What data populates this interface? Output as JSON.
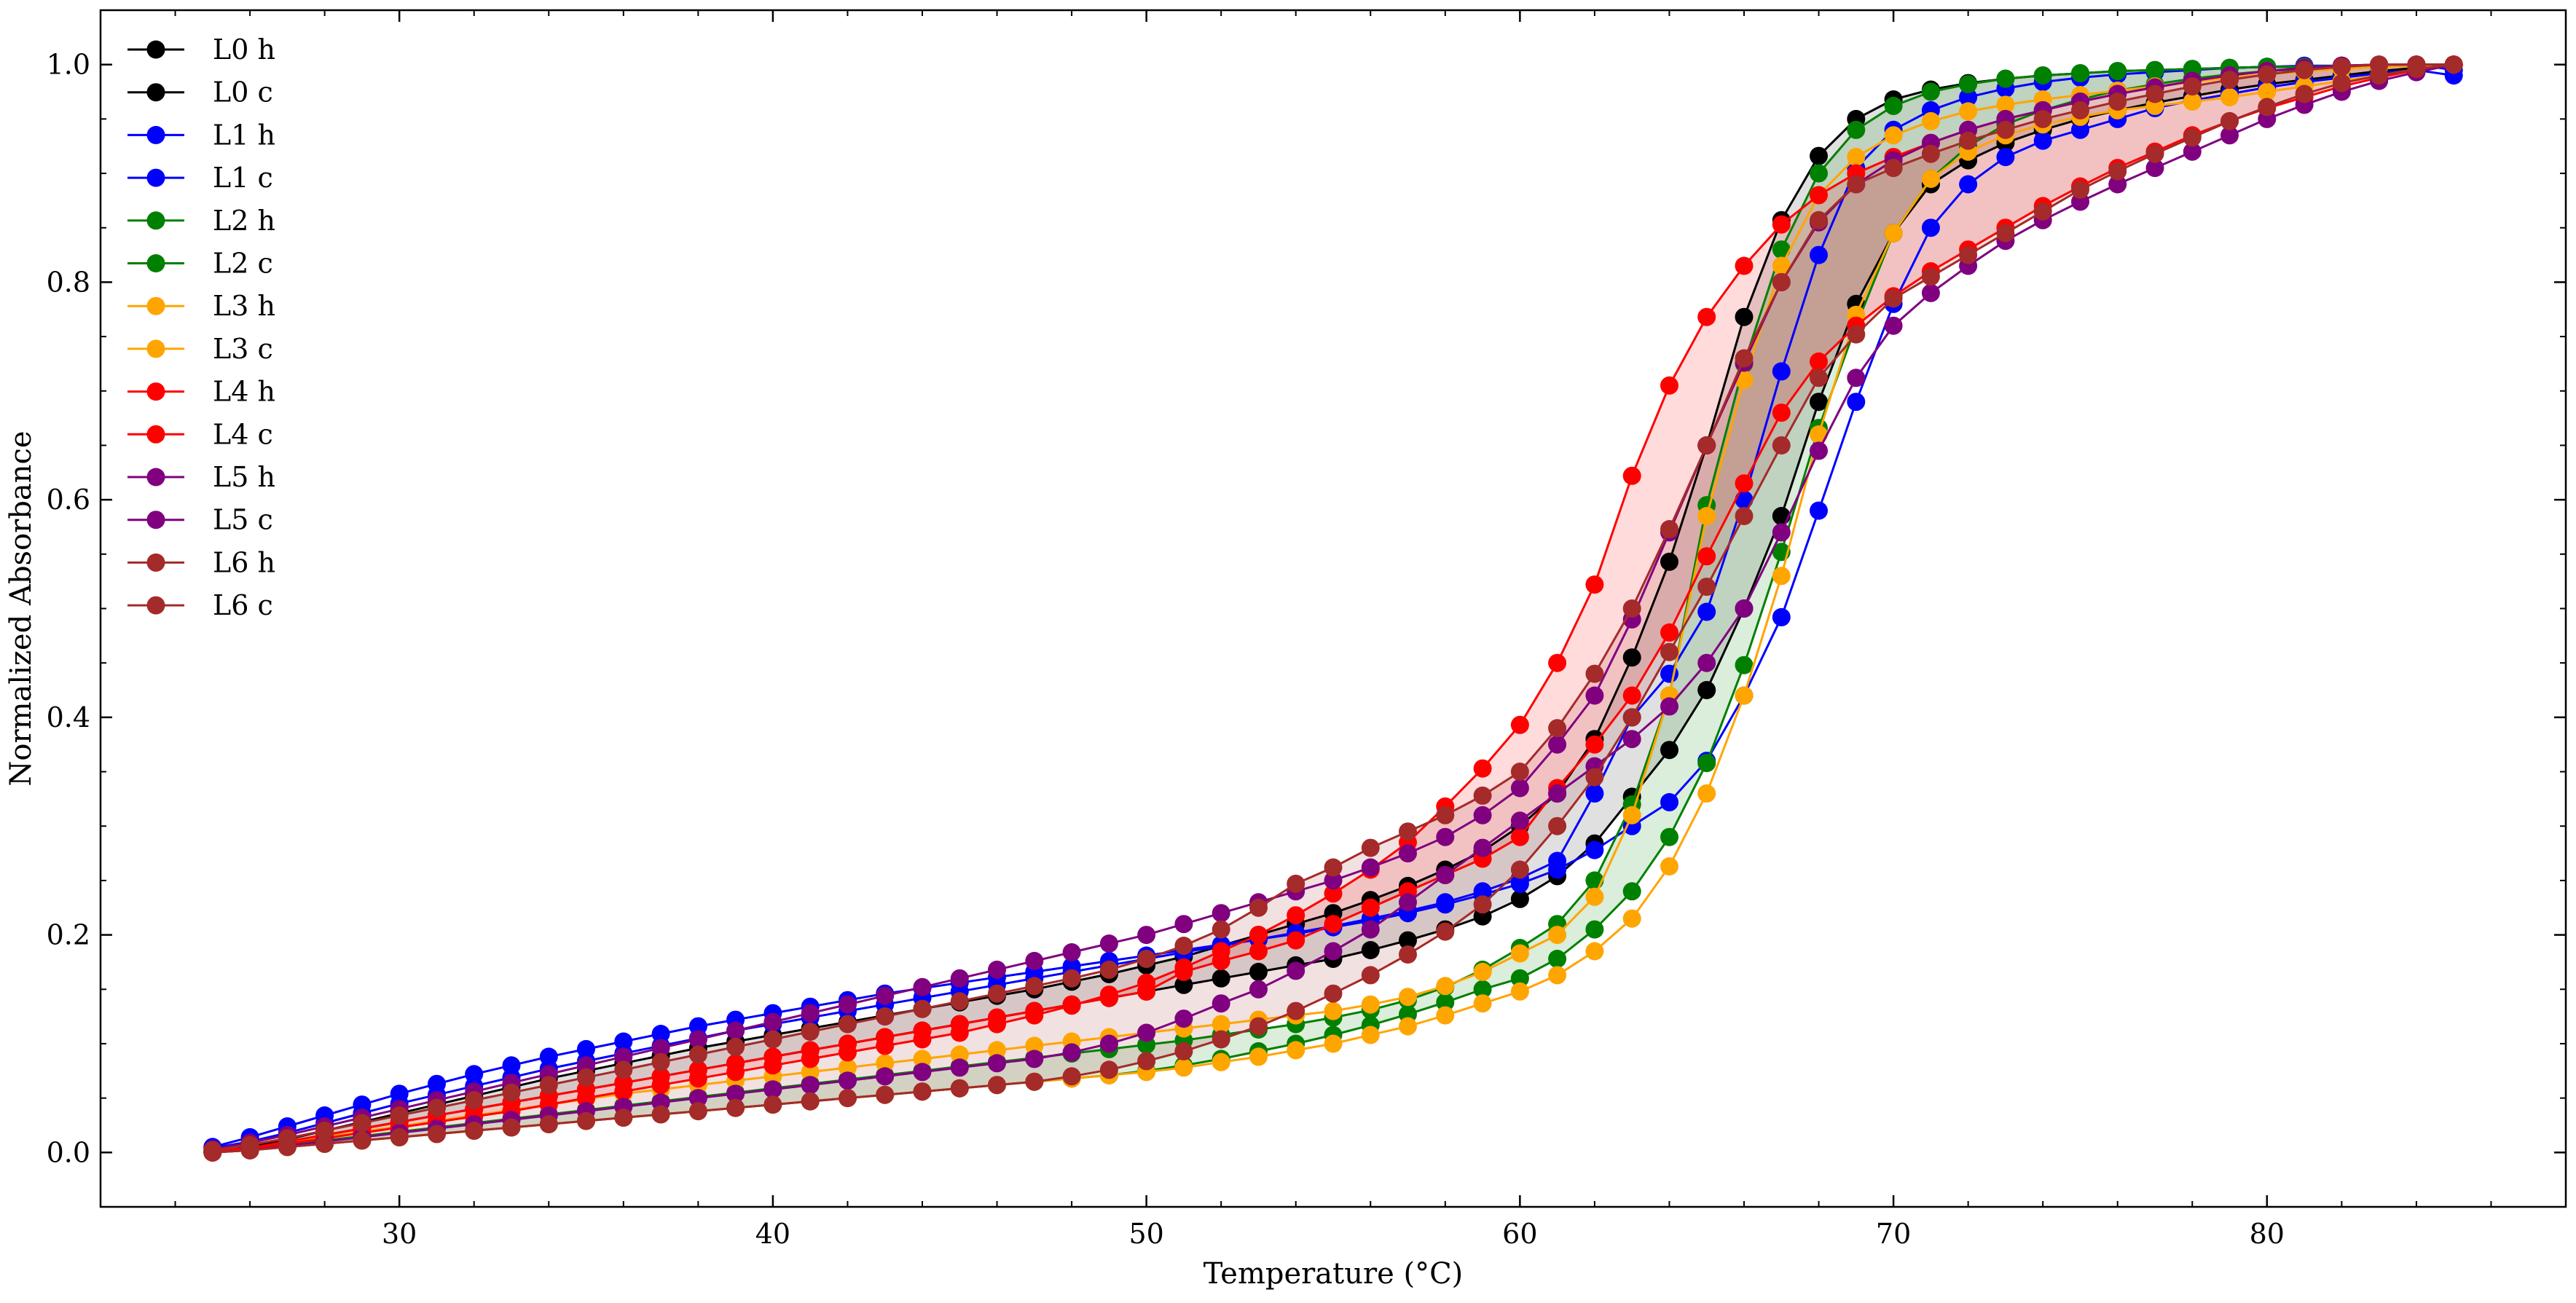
{
  "chart_data": {
    "type": "line",
    "title": "",
    "xlabel": "Temperature (°C)",
    "ylabel": "Normalized Absorbance",
    "xlim": [
      22,
      88
    ],
    "ylim": [
      -0.05,
      1.05
    ],
    "x_ticks": [
      30,
      40,
      50,
      60,
      70,
      80
    ],
    "y_ticks": [
      0.0,
      0.2,
      0.4,
      0.6,
      0.8,
      1.0
    ],
    "x_tick_labels": [
      "30",
      "40",
      "50",
      "60",
      "70",
      "80"
    ],
    "y_tick_labels": [
      "0.0",
      "0.2",
      "0.4",
      "0.6",
      "0.8",
      "1.0"
    ],
    "legend_position": "top-left",
    "grid": false,
    "x": [
      25,
      26,
      27,
      28,
      29,
      30,
      31,
      32,
      33,
      34,
      35,
      36,
      37,
      38,
      39,
      40,
      41,
      42,
      43,
      44,
      45,
      46,
      47,
      48,
      49,
      50,
      51,
      52,
      53,
      54,
      55,
      56,
      57,
      58,
      59,
      60,
      61,
      62,
      63,
      64,
      65,
      66,
      67,
      68,
      69,
      70,
      71,
      72,
      73,
      74,
      75,
      76,
      77,
      78,
      79,
      80,
      81,
      82,
      83,
      84,
      85
    ],
    "series": [
      {
        "name": "L0 h",
        "color": "#000000",
        "values": [
          0,
          0.005,
          0.012,
          0.02,
          0.028,
          0.036,
          0.044,
          0.052,
          0.06,
          0.068,
          0.075,
          0.082,
          0.089,
          0.096,
          0.102,
          0.108,
          0.114,
          0.12,
          0.126,
          0.132,
          0.138,
          0.144,
          0.15,
          0.157,
          0.164,
          0.172,
          0.18,
          0.19,
          0.2,
          0.21,
          0.22,
          0.232,
          0.245,
          0.26,
          0.277,
          0.3,
          0.33,
          0.38,
          0.455,
          0.543,
          0.65,
          0.768,
          0.857,
          0.916,
          0.95,
          0.968,
          0.977,
          0.983,
          0.987,
          0.99,
          0.992,
          0.994,
          0.995,
          0.996,
          0.997,
          0.998,
          0.998,
          0.999,
          0.999,
          1.0,
          1.0
        ]
      },
      {
        "name": "L0 c",
        "color": "#000000",
        "values": [
          0,
          0.004,
          0.01,
          0.016,
          0.022,
          0.028,
          0.034,
          0.04,
          0.046,
          0.052,
          0.058,
          0.064,
          0.07,
          0.076,
          0.082,
          0.088,
          0.094,
          0.1,
          0.106,
          0.112,
          0.118,
          0.124,
          0.13,
          0.136,
          0.142,
          0.148,
          0.154,
          0.16,
          0.166,
          0.172,
          0.178,
          0.186,
          0.195,
          0.205,
          0.217,
          0.233,
          0.254,
          0.284,
          0.327,
          0.37,
          0.425,
          0.5,
          0.585,
          0.69,
          0.78,
          0.845,
          0.89,
          0.912,
          0.928,
          0.94,
          0.95,
          0.958,
          0.965,
          0.971,
          0.977,
          0.982,
          0.986,
          0.99,
          0.994,
          0.997,
          1.0
        ]
      },
      {
        "name": "L1 h",
        "color": "#0000ff",
        "values": [
          0.005,
          0.014,
          0.024,
          0.034,
          0.044,
          0.054,
          0.063,
          0.072,
          0.08,
          0.088,
          0.095,
          0.102,
          0.109,
          0.116,
          0.122,
          0.128,
          0.134,
          0.14,
          0.146,
          0.151,
          0.156,
          0.161,
          0.166,
          0.171,
          0.176,
          0.181,
          0.186,
          0.191,
          0.196,
          0.201,
          0.207,
          0.213,
          0.22,
          0.228,
          0.237,
          0.247,
          0.26,
          0.278,
          0.3,
          0.322,
          0.36,
          0.42,
          0.492,
          0.59,
          0.69,
          0.78,
          0.85,
          0.89,
          0.915,
          0.93,
          0.94,
          0.95,
          0.96,
          0.967,
          0.973,
          0.979,
          0.984,
          0.988,
          0.992,
          0.995,
          0.99
        ]
      },
      {
        "name": "L1 c",
        "color": "#0000ff",
        "values": [
          0.004,
          0.01,
          0.018,
          0.027,
          0.036,
          0.045,
          0.053,
          0.061,
          0.069,
          0.077,
          0.084,
          0.091,
          0.098,
          0.105,
          0.112,
          0.118,
          0.124,
          0.13,
          0.136,
          0.142,
          0.148,
          0.154,
          0.16,
          0.166,
          0.172,
          0.178,
          0.184,
          0.19,
          0.196,
          0.202,
          0.208,
          0.215,
          0.222,
          0.23,
          0.24,
          0.252,
          0.268,
          0.33,
          0.4,
          0.44,
          0.497,
          0.6,
          0.718,
          0.825,
          0.905,
          0.94,
          0.958,
          0.97,
          0.978,
          0.984,
          0.988,
          0.991,
          0.993,
          0.995,
          0.997,
          0.998,
          0.999,
          0.999,
          1.0,
          1.0,
          0.995
        ]
      },
      {
        "name": "L2 h",
        "color": "#008000",
        "values": [
          0,
          0.003,
          0.007,
          0.011,
          0.015,
          0.019,
          0.023,
          0.027,
          0.031,
          0.035,
          0.039,
          0.043,
          0.047,
          0.051,
          0.055,
          0.059,
          0.063,
          0.067,
          0.071,
          0.075,
          0.079,
          0.083,
          0.087,
          0.091,
          0.095,
          0.099,
          0.103,
          0.108,
          0.113,
          0.118,
          0.124,
          0.131,
          0.14,
          0.152,
          0.168,
          0.188,
          0.21,
          0.25,
          0.32,
          0.42,
          0.595,
          0.725,
          0.83,
          0.9,
          0.94,
          0.962,
          0.975,
          0.982,
          0.987,
          0.99,
          0.992,
          0.994,
          0.995,
          0.996,
          0.997,
          0.998,
          0.998,
          0.999,
          0.999,
          1.0,
          1.0
        ]
      },
      {
        "name": "L2 c",
        "color": "#008000",
        "values": [
          0,
          0.002,
          0.005,
          0.008,
          0.011,
          0.014,
          0.017,
          0.02,
          0.023,
          0.026,
          0.029,
          0.032,
          0.035,
          0.038,
          0.041,
          0.044,
          0.047,
          0.05,
          0.053,
          0.056,
          0.059,
          0.062,
          0.065,
          0.068,
          0.071,
          0.075,
          0.08,
          0.086,
          0.093,
          0.1,
          0.108,
          0.117,
          0.127,
          0.138,
          0.15,
          0.16,
          0.178,
          0.205,
          0.24,
          0.29,
          0.358,
          0.448,
          0.552,
          0.666,
          0.76,
          0.845,
          0.895,
          0.925,
          0.945,
          0.958,
          0.968,
          0.976,
          0.982,
          0.987,
          0.991,
          0.994,
          0.996,
          0.998,
          0.999,
          1.0,
          1.0
        ]
      },
      {
        "name": "L3 h",
        "color": "#ffa500",
        "values": [
          0,
          0.004,
          0.009,
          0.014,
          0.019,
          0.024,
          0.029,
          0.034,
          0.039,
          0.044,
          0.049,
          0.054,
          0.058,
          0.062,
          0.066,
          0.07,
          0.074,
          0.078,
          0.082,
          0.086,
          0.09,
          0.094,
          0.098,
          0.102,
          0.106,
          0.11,
          0.114,
          0.118,
          0.122,
          0.126,
          0.13,
          0.136,
          0.143,
          0.153,
          0.166,
          0.183,
          0.2,
          0.235,
          0.31,
          0.42,
          0.585,
          0.71,
          0.815,
          0.88,
          0.915,
          0.935,
          0.948,
          0.957,
          0.963,
          0.968,
          0.972,
          0.976,
          0.98,
          0.984,
          0.988,
          0.991,
          0.994,
          0.996,
          0.998,
          0.999,
          1.0
        ]
      },
      {
        "name": "L3 c",
        "color": "#ffa500",
        "values": [
          0,
          0.002,
          0.005,
          0.008,
          0.011,
          0.014,
          0.017,
          0.02,
          0.023,
          0.026,
          0.029,
          0.032,
          0.035,
          0.038,
          0.041,
          0.044,
          0.047,
          0.05,
          0.053,
          0.056,
          0.059,
          0.062,
          0.065,
          0.068,
          0.071,
          0.074,
          0.078,
          0.083,
          0.088,
          0.094,
          0.1,
          0.108,
          0.116,
          0.126,
          0.137,
          0.148,
          0.163,
          0.185,
          0.215,
          0.263,
          0.33,
          0.42,
          0.53,
          0.66,
          0.77,
          0.845,
          0.895,
          0.92,
          0.935,
          0.945,
          0.952,
          0.958,
          0.962,
          0.966,
          0.97,
          0.975,
          0.98,
          0.985,
          0.99,
          0.995,
          1.0
        ]
      },
      {
        "name": "L4 h",
        "color": "#ff0000",
        "values": [
          0,
          0.003,
          0.008,
          0.013,
          0.018,
          0.023,
          0.028,
          0.033,
          0.038,
          0.044,
          0.05,
          0.056,
          0.062,
          0.068,
          0.074,
          0.08,
          0.086,
          0.092,
          0.098,
          0.104,
          0.11,
          0.118,
          0.126,
          0.135,
          0.145,
          0.156,
          0.17,
          0.185,
          0.2,
          0.218,
          0.238,
          0.26,
          0.285,
          0.318,
          0.353,
          0.393,
          0.45,
          0.522,
          0.622,
          0.705,
          0.768,
          0.815,
          0.853,
          0.88,
          0.9,
          0.915,
          0.928,
          0.94,
          0.95,
          0.958,
          0.966,
          0.973,
          0.979,
          0.985,
          0.99,
          0.994,
          0.997,
          0.999,
          1.0,
          1.0,
          1.0
        ]
      },
      {
        "name": "L4 c",
        "color": "#ff0000",
        "values": [
          0.001,
          0.004,
          0.01,
          0.016,
          0.022,
          0.028,
          0.034,
          0.04,
          0.046,
          0.052,
          0.058,
          0.064,
          0.07,
          0.076,
          0.082,
          0.088,
          0.094,
          0.1,
          0.106,
          0.112,
          0.118,
          0.124,
          0.13,
          0.136,
          0.142,
          0.148,
          0.166,
          0.176,
          0.185,
          0.195,
          0.21,
          0.225,
          0.24,
          0.255,
          0.27,
          0.29,
          0.335,
          0.375,
          0.42,
          0.478,
          0.548,
          0.615,
          0.68,
          0.727,
          0.76,
          0.787,
          0.81,
          0.83,
          0.85,
          0.87,
          0.888,
          0.905,
          0.92,
          0.935,
          0.948,
          0.96,
          0.97,
          0.98,
          0.988,
          0.995,
          1.0
        ]
      },
      {
        "name": "L5 h",
        "color": "#800080",
        "values": [
          0.003,
          0.009,
          0.016,
          0.024,
          0.032,
          0.04,
          0.048,
          0.056,
          0.064,
          0.072,
          0.08,
          0.088,
          0.096,
          0.104,
          0.112,
          0.12,
          0.128,
          0.136,
          0.144,
          0.152,
          0.16,
          0.168,
          0.176,
          0.184,
          0.192,
          0.2,
          0.21,
          0.22,
          0.23,
          0.24,
          0.25,
          0.262,
          0.275,
          0.29,
          0.31,
          0.335,
          0.375,
          0.42,
          0.49,
          0.57,
          0.65,
          0.726,
          0.8,
          0.855,
          0.89,
          0.912,
          0.928,
          0.94,
          0.95,
          0.958,
          0.966,
          0.973,
          0.979,
          0.985,
          0.99,
          0.994,
          0.997,
          0.999,
          1.0,
          1.0,
          1.0
        ]
      },
      {
        "name": "L5 c",
        "color": "#800080",
        "values": [
          0,
          0.002,
          0.006,
          0.01,
          0.014,
          0.018,
          0.022,
          0.026,
          0.03,
          0.034,
          0.038,
          0.042,
          0.046,
          0.05,
          0.054,
          0.058,
          0.062,
          0.066,
          0.07,
          0.074,
          0.078,
          0.082,
          0.086,
          0.092,
          0.1,
          0.11,
          0.123,
          0.137,
          0.15,
          0.167,
          0.185,
          0.205,
          0.23,
          0.255,
          0.28,
          0.305,
          0.33,
          0.355,
          0.38,
          0.41,
          0.45,
          0.5,
          0.57,
          0.645,
          0.712,
          0.76,
          0.79,
          0.815,
          0.838,
          0.857,
          0.874,
          0.89,
          0.905,
          0.92,
          0.935,
          0.95,
          0.963,
          0.975,
          0.985,
          0.993,
          1.0
        ]
      },
      {
        "name": "L6 h",
        "color": "#a52a2a",
        "values": [
          0.002,
          0.007,
          0.013,
          0.02,
          0.027,
          0.034,
          0.041,
          0.048,
          0.055,
          0.062,
          0.069,
          0.076,
          0.083,
          0.09,
          0.097,
          0.104,
          0.111,
          0.118,
          0.125,
          0.132,
          0.139,
          0.146,
          0.153,
          0.16,
          0.168,
          0.178,
          0.19,
          0.205,
          0.225,
          0.247,
          0.262,
          0.28,
          0.295,
          0.31,
          0.328,
          0.35,
          0.39,
          0.44,
          0.5,
          0.573,
          0.65,
          0.73,
          0.8,
          0.857,
          0.89,
          0.905,
          0.918,
          0.93,
          0.94,
          0.95,
          0.958,
          0.966,
          0.973,
          0.98,
          0.986,
          0.991,
          0.995,
          0.998,
          1.0,
          1.0,
          1.0
        ]
      },
      {
        "name": "L6 c",
        "color": "#a52a2a",
        "values": [
          0,
          0.002,
          0.005,
          0.008,
          0.011,
          0.014,
          0.017,
          0.02,
          0.023,
          0.026,
          0.029,
          0.032,
          0.035,
          0.038,
          0.041,
          0.044,
          0.047,
          0.05,
          0.053,
          0.056,
          0.059,
          0.062,
          0.065,
          0.07,
          0.076,
          0.084,
          0.093,
          0.104,
          0.116,
          0.13,
          0.146,
          0.163,
          0.182,
          0.203,
          0.228,
          0.26,
          0.3,
          0.345,
          0.4,
          0.46,
          0.52,
          0.585,
          0.65,
          0.712,
          0.752,
          0.785,
          0.805,
          0.825,
          0.845,
          0.865,
          0.885,
          0.902,
          0.918,
          0.933,
          0.948,
          0.961,
          0.973,
          0.983,
          0.99,
          0.996,
          1.0
        ]
      }
    ],
    "fills": [
      {
        "between": [
          "L0 h",
          "L0 c"
        ],
        "color": "#000000",
        "opacity": 0.12
      },
      {
        "between": [
          "L2 h",
          "L2 c"
        ],
        "color": "#008000",
        "opacity": 0.14
      },
      {
        "between": [
          "L4 h",
          "L4 c"
        ],
        "color": "#ff0000",
        "opacity": 0.14
      },
      {
        "between": [
          "L6 h",
          "L6 c"
        ],
        "color": "#a52a2a",
        "opacity": 0.14
      }
    ]
  }
}
